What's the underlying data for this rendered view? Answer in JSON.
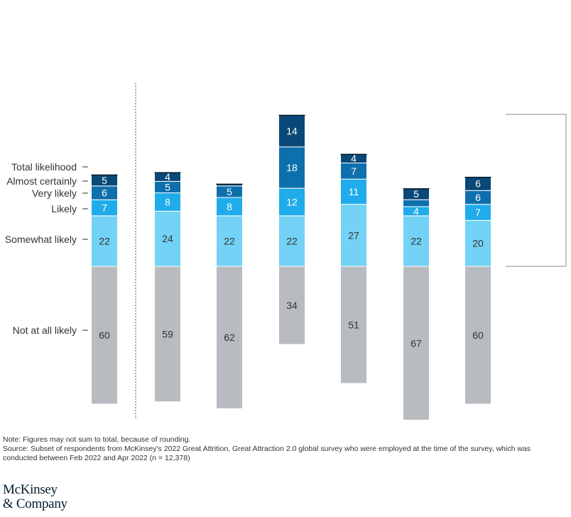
{
  "chart_data": {
    "type": "bar",
    "stacked": true,
    "layers": [
      {
        "name": "Not at all likely",
        "color": "#b8bcc1",
        "values": [
          60,
          59,
          62,
          34,
          51,
          67,
          60
        ]
      },
      {
        "name": "Somewhat likely",
        "color": "#73d2f5",
        "values": [
          22,
          24,
          22,
          22,
          27,
          22,
          20
        ]
      },
      {
        "name": "Likely",
        "color": "#20acea",
        "values": [
          7,
          8,
          8,
          12,
          11,
          4,
          7
        ]
      },
      {
        "name": "Very likely",
        "color": "#0e6fad",
        "values": [
          6,
          5,
          5,
          18,
          7,
          3,
          6
        ]
      },
      {
        "name": "Almost certainly",
        "color": "#0a4877",
        "values": [
          5,
          4,
          1,
          14,
          4,
          5,
          6
        ]
      }
    ],
    "labels": [
      [
        "60",
        "22",
        "7",
        "6",
        "5"
      ],
      [
        "59",
        "24",
        "8",
        "5",
        "4"
      ],
      [
        "62",
        "22",
        "8",
        "5",
        ""
      ],
      [
        "34",
        "22",
        "12",
        "18",
        "14"
      ],
      [
        "51",
        "27",
        "11",
        "7",
        "4"
      ],
      [
        "67",
        "22",
        "4",
        "",
        "5"
      ],
      [
        "60",
        "20",
        "7",
        "6",
        "6"
      ]
    ],
    "legend_labels": [
      "Total likelihood",
      "Almost certainly",
      "Very likely",
      "Likely",
      "Somewhat likely",
      "Not at all likely"
    ]
  },
  "footer": {
    "note": "Note: Figures may not sum to total, because of rounding.",
    "source_1": "Source: Subset of respondents from McKinsey's 2022 Great Attrition, Great Attraction 2.0 global survey who were employed at the time of the survey, which was",
    "source_2": " conducted between Feb 2022 and Apr 2022 (n = 12,378)",
    "logo_line_1": "McKinsey",
    "logo_line_2": "& Company"
  }
}
